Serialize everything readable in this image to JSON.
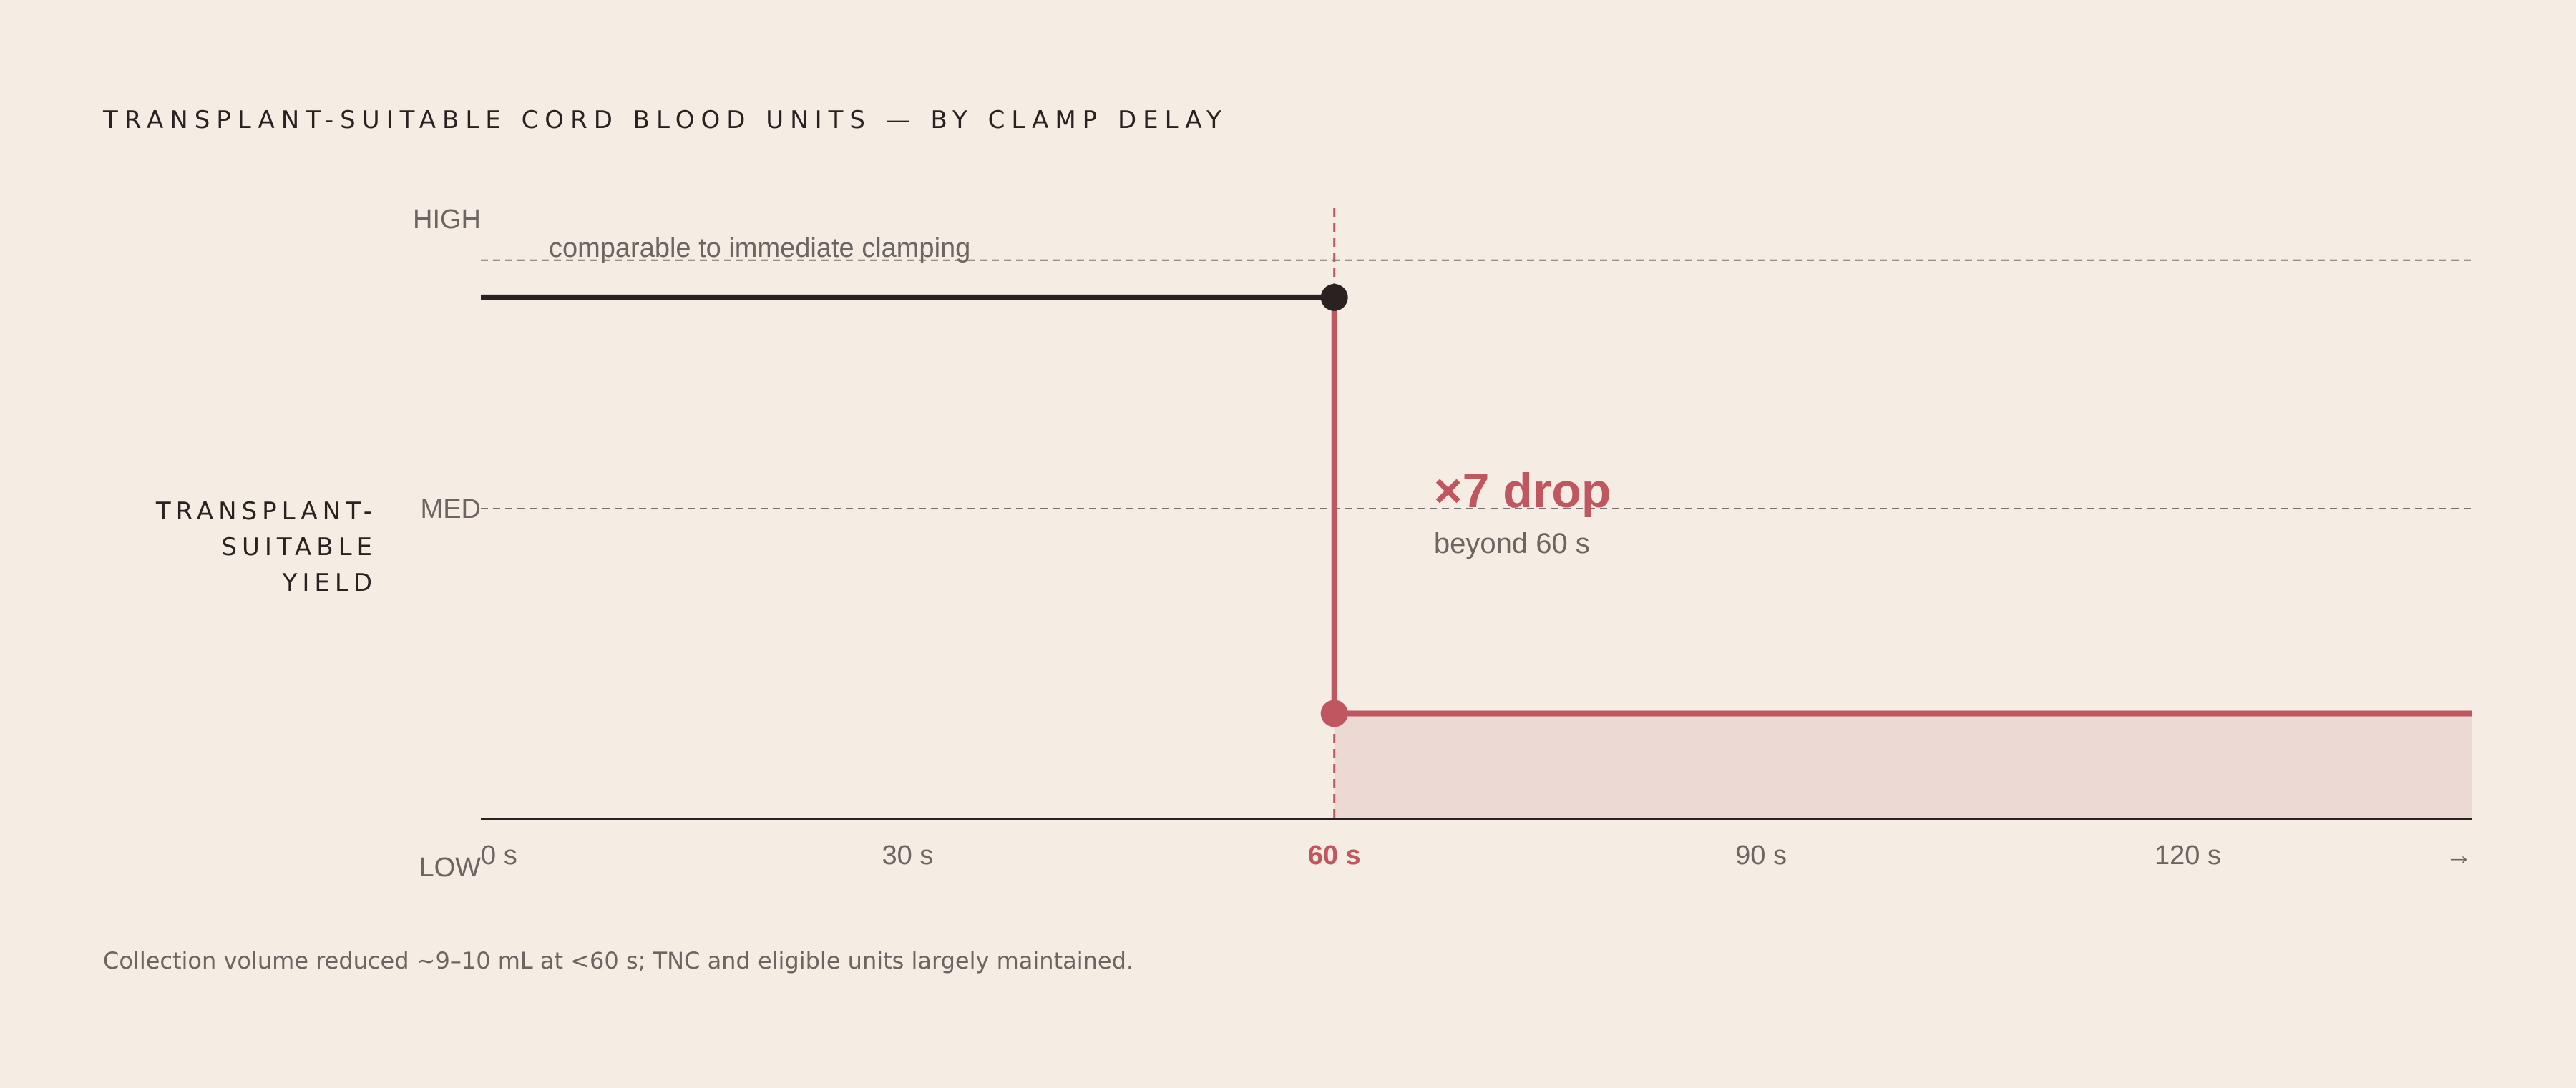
{
  "title": "TRANSPLANT-SUITABLE CORD BLOOD UNITS — BY CLAMP DELAY",
  "footnote": "Collection volume reduced ~9–10 mL at <60 s; TNC and eligible units largely maintained.",
  "colors": {
    "background": "#f5ece3",
    "ink": "#2a2220",
    "accent": "#bf5660",
    "muted": "#6e6462",
    "fill": "#ecd9d3"
  },
  "chart_data": {
    "type": "line",
    "title": "TRANSPLANT-SUITABLE CORD BLOOD UNITS — BY CLAMP DELAY",
    "ylabel": [
      "TRANSPLANT-",
      "SUITABLE",
      "YIELD"
    ],
    "xlabel": "",
    "x_ticks": [
      {
        "value": 0,
        "label": "0 s",
        "highlight": false
      },
      {
        "value": 30,
        "label": "30 s",
        "highlight": false
      },
      {
        "value": 60,
        "label": "60 s",
        "highlight": true
      },
      {
        "value": 90,
        "label": "90 s",
        "highlight": false
      },
      {
        "value": 120,
        "label": "120 s",
        "highlight": false
      }
    ],
    "x_arrow": "→",
    "xlim": [
      0,
      140
    ],
    "y_ticks": [
      {
        "value": 1.0,
        "label": "HIGH"
      },
      {
        "value": 0.5,
        "label": "MED"
      },
      {
        "value": 0.0,
        "label": "LOW"
      }
    ],
    "ylim": [
      0,
      1
    ],
    "reference_lines": [
      {
        "y": 0.9,
        "label": "comparable to immediate clamping"
      },
      {
        "y": 0.5,
        "label": ""
      }
    ],
    "threshold": {
      "x": 60
    },
    "series": [
      {
        "segment": "before",
        "x": [
          0,
          60
        ],
        "y": [
          0.84,
          0.84
        ]
      },
      {
        "segment": "after",
        "x": [
          60,
          140
        ],
        "y": [
          0.17,
          0.17
        ]
      }
    ],
    "annotation": {
      "x": 67,
      "y": 0.5,
      "headline": "×7 drop",
      "subtext": "beyond 60 s"
    }
  }
}
